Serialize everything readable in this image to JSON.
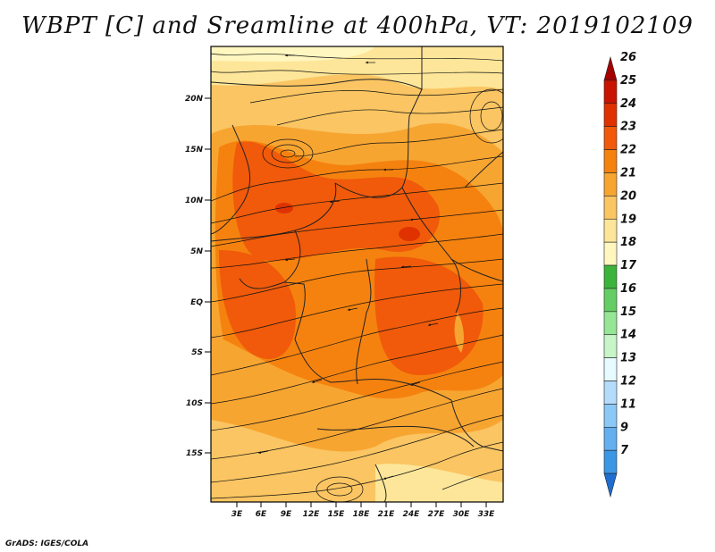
{
  "title": "WBPT [C] and Sreamline at 400hPa, VT: 2019102109",
  "footer": "GrADS: IGES/COLA",
  "map": {
    "lat_labels": [
      "20N",
      "15N",
      "10N",
      "5N",
      "EQ",
      "5S",
      "10S",
      "15S"
    ],
    "lon_labels": [
      "3E",
      "6E",
      "9E",
      "12E",
      "15E",
      "18E",
      "21E",
      "24E",
      "27E",
      "30E",
      "33E"
    ]
  },
  "colorbar": {
    "labels": [
      "26",
      "25",
      "24",
      "23",
      "22",
      "21",
      "20",
      "19",
      "18",
      "17",
      "16",
      "15",
      "14",
      "13",
      "12",
      "11",
      "9",
      "7"
    ],
    "colors": [
      "#a50000",
      "#c81400",
      "#e03200",
      "#f05a0a",
      "#f5820f",
      "#f7a531",
      "#fac562",
      "#fde699",
      "#fff7bf",
      "#3cb43c",
      "#64cd64",
      "#96e696",
      "#c8f5c8",
      "#e6faff",
      "#b4dcfa",
      "#8cc8f5",
      "#64aff0",
      "#3c96e6",
      "#1e6ed2"
    ]
  }
}
